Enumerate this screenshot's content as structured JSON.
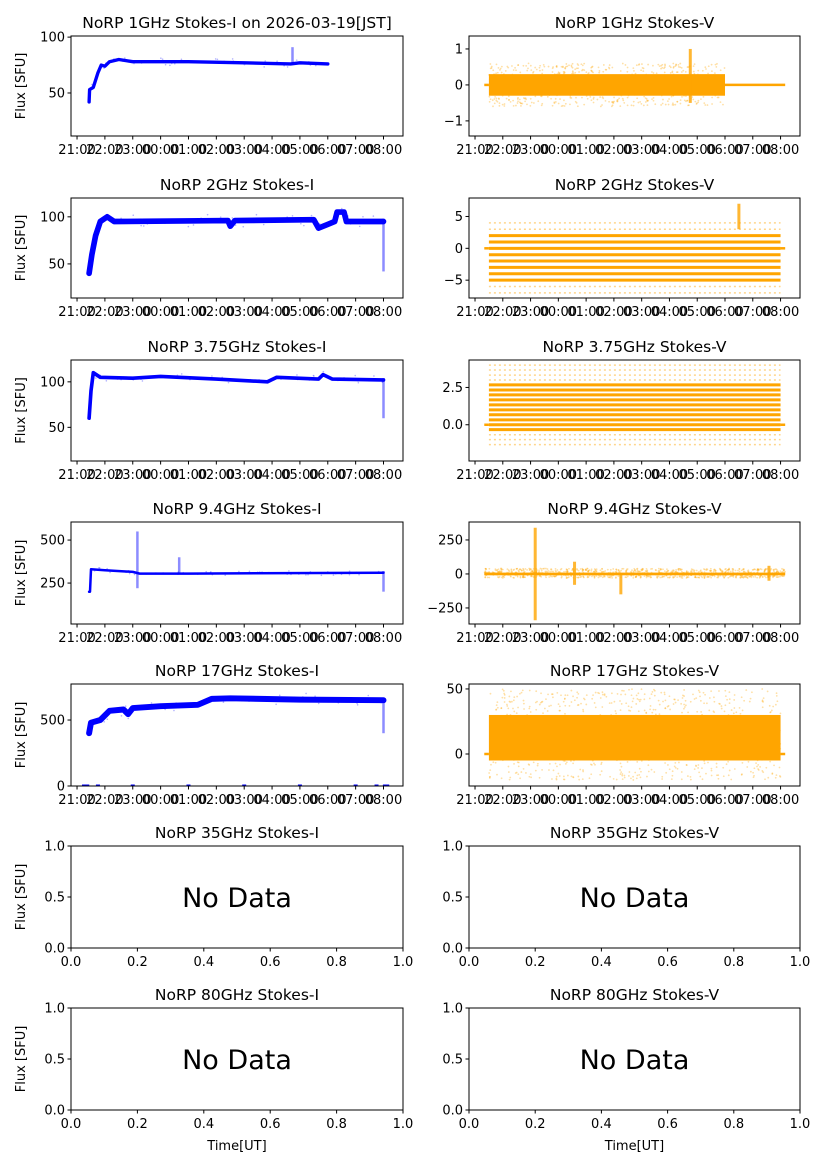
{
  "chart_data": [
    {
      "type": "line",
      "title": "NoRP 1GHz Stokes-I on 2026-03-19[JST]",
      "ylabel": "Flux [SFU]",
      "xlabel": "",
      "color": "#0000ff",
      "kind": "I",
      "xlim": [
        "20:47",
        "08:42"
      ],
      "ylim": [
        11.5,
        101
      ],
      "xticks": [
        "21:00",
        "22:00",
        "23:00",
        "00:00",
        "01:00",
        "02:00",
        "03:00",
        "04:00",
        "05:00",
        "06:00",
        "07:00",
        "08:00"
      ],
      "yticks": [
        {
          "value": 50,
          "label": "50"
        },
        {
          "value": 100,
          "label": "100"
        }
      ],
      "trend": [
        [
          "21:26",
          42
        ],
        [
          "21:27",
          53
        ],
        [
          "21:35",
          55
        ],
        [
          "21:45",
          68
        ],
        [
          "21:52",
          75
        ],
        [
          "22:00",
          74
        ],
        [
          "22:10",
          78
        ],
        [
          "22:30",
          80
        ],
        [
          "23:00",
          78
        ],
        [
          "01:00",
          78
        ],
        [
          "03:00",
          77
        ],
        [
          "04:40",
          76
        ],
        [
          "05:00",
          77
        ],
        [
          "06:00",
          76
        ]
      ],
      "noise": 3,
      "spikes": [
        [
          "04:44",
          76,
          91
        ]
      ]
    },
    {
      "type": "scatter",
      "title": "NoRP 1GHz Stokes-V",
      "ylabel": "",
      "xlabel": "",
      "color": "#ffa500",
      "kind": "V",
      "xlim": [
        "20:47",
        "08:42"
      ],
      "ylim": [
        -1.42,
        1.36
      ],
      "xticks": [
        "21:00",
        "22:00",
        "23:00",
        "00:00",
        "01:00",
        "02:00",
        "03:00",
        "04:00",
        "05:00",
        "06:00",
        "07:00",
        "08:00"
      ],
      "yticks": [
        {
          "value": -1,
          "label": "−1"
        },
        {
          "value": 0,
          "label": "0"
        },
        {
          "value": 1,
          "label": "1"
        }
      ],
      "range": [
        "21:30",
        "06:00"
      ],
      "band": [
        -0.3,
        0.3
      ],
      "scatter": [
        -0.6,
        0.6
      ],
      "zero_segments": [
        [
          "21:20",
          "21:30"
        ],
        [
          "06:00",
          "08:10"
        ]
      ],
      "spikes": [
        [
          "04:45",
          -0.5,
          1.0
        ]
      ]
    },
    {
      "type": "line",
      "title": "NoRP 2GHz Stokes-I",
      "ylabel": "Flux [SFU]",
      "xlabel": "",
      "color": "#0000ff",
      "kind": "I",
      "xlim": [
        "20:47",
        "08:42"
      ],
      "ylim": [
        13.8,
        120
      ],
      "xticks": [
        "21:00",
        "22:00",
        "23:00",
        "00:00",
        "01:00",
        "02:00",
        "03:00",
        "04:00",
        "05:00",
        "06:00",
        "07:00",
        "08:00"
      ],
      "yticks": [
        {
          "value": 50,
          "label": "50"
        },
        {
          "value": 100,
          "label": "100"
        }
      ],
      "trend": [
        [
          "21:26",
          40
        ],
        [
          "21:32",
          60
        ],
        [
          "21:40",
          80
        ],
        [
          "21:50",
          95
        ],
        [
          "22:05",
          100
        ],
        [
          "22:20",
          95
        ],
        [
          "02:25",
          96
        ],
        [
          "02:30",
          90
        ],
        [
          "02:40",
          96
        ],
        [
          "05:30",
          97
        ],
        [
          "05:40",
          88
        ],
        [
          "06:00",
          92
        ],
        [
          "06:15",
          95
        ],
        [
          "06:20",
          105
        ],
        [
          "06:35",
          105
        ],
        [
          "06:40",
          95
        ],
        [
          "08:00",
          95
        ]
      ],
      "noise": 6,
      "spikes": [
        [
          "08:00",
          42,
          98
        ]
      ]
    },
    {
      "type": "scatter",
      "title": "NoRP 2GHz Stokes-V",
      "ylabel": "",
      "xlabel": "",
      "color": "#ffa500",
      "kind": "V",
      "xlim": [
        "20:47",
        "08:42"
      ],
      "ylim": [
        -7.8,
        7.9
      ],
      "xticks": [
        "21:00",
        "22:00",
        "23:00",
        "00:00",
        "01:00",
        "02:00",
        "03:00",
        "04:00",
        "05:00",
        "06:00",
        "07:00",
        "08:00"
      ],
      "yticks": [
        {
          "value": -5,
          "label": "−5"
        },
        {
          "value": 0,
          "label": "0"
        },
        {
          "value": 5,
          "label": "5"
        }
      ],
      "range": [
        "21:30",
        "08:00"
      ],
      "levels_dense": [
        -5,
        -4,
        -3,
        -2,
        -1,
        0,
        1,
        2
      ],
      "levels_sparse": [
        3,
        -6,
        4,
        -7
      ],
      "zero_segments": [
        [
          "21:20",
          "21:30"
        ],
        [
          "08:00",
          "08:10"
        ]
      ],
      "spikes": [
        [
          "06:30",
          3,
          7
        ]
      ]
    },
    {
      "type": "line",
      "title": "NoRP 3.75GHz Stokes-I",
      "ylabel": "Flux [SFU]",
      "xlabel": "",
      "color": "#0000ff",
      "kind": "I",
      "xlim": [
        "20:47",
        "08:42"
      ],
      "ylim": [
        13,
        124
      ],
      "xticks": [
        "21:00",
        "22:00",
        "23:00",
        "00:00",
        "01:00",
        "02:00",
        "03:00",
        "04:00",
        "05:00",
        "06:00",
        "07:00",
        "08:00"
      ],
      "yticks": [
        {
          "value": 50,
          "label": "50"
        },
        {
          "value": 100,
          "label": "100"
        }
      ],
      "trend": [
        [
          "21:26",
          60
        ],
        [
          "21:30",
          90
        ],
        [
          "21:35",
          110
        ],
        [
          "21:50",
          105
        ],
        [
          "23:00",
          104
        ],
        [
          "00:00",
          106
        ],
        [
          "02:00",
          103
        ],
        [
          "03:50",
          100
        ],
        [
          "04:10",
          105
        ],
        [
          "05:40",
          103
        ],
        [
          "05:50",
          108
        ],
        [
          "06:10",
          103
        ],
        [
          "08:00",
          102
        ]
      ],
      "noise": 4,
      "spikes": [
        [
          "08:00",
          60,
          104
        ]
      ]
    },
    {
      "type": "scatter",
      "title": "NoRP 3.75GHz Stokes-V",
      "ylabel": "",
      "xlabel": "",
      "color": "#ffa500",
      "kind": "V",
      "xlim": [
        "20:47",
        "08:42"
      ],
      "ylim": [
        -2.43,
        4.34
      ],
      "xticks": [
        "21:00",
        "22:00",
        "23:00",
        "00:00",
        "01:00",
        "02:00",
        "03:00",
        "04:00",
        "05:00",
        "06:00",
        "07:00",
        "08:00"
      ],
      "yticks": [
        {
          "value": 0,
          "label": "0.0"
        },
        {
          "value": 2.5,
          "label": "2.5"
        }
      ],
      "range": [
        "21:30",
        "08:00"
      ],
      "levels_dense": [
        -0.33,
        0,
        0.33,
        0.67,
        1,
        1.33,
        1.67,
        2,
        2.33,
        2.67
      ],
      "levels_sparse": [
        -0.67,
        -1,
        -1.33,
        3,
        3.33,
        3.67,
        4
      ],
      "zero_segments": [
        [
          "21:20",
          "21:30"
        ],
        [
          "08:00",
          "08:10"
        ]
      ],
      "spikes": []
    },
    {
      "type": "line",
      "title": "NoRP 9.4GHz Stokes-I",
      "ylabel": "Flux [SFU]",
      "xlabel": "",
      "color": "#0000ff",
      "kind": "I",
      "xlim": [
        "20:47",
        "08:42"
      ],
      "ylim": [
        12,
        605
      ],
      "xticks": [
        "21:00",
        "22:00",
        "23:00",
        "00:00",
        "01:00",
        "02:00",
        "03:00",
        "04:00",
        "05:00",
        "06:00",
        "07:00",
        "08:00"
      ],
      "yticks": [
        {
          "value": 250,
          "label": "250"
        },
        {
          "value": 500,
          "label": "500"
        }
      ],
      "trend": [
        [
          "21:26",
          200
        ],
        [
          "21:28",
          200
        ],
        [
          "21:30",
          330
        ],
        [
          "22:00",
          325
        ],
        [
          "23:00",
          315
        ],
        [
          "23:15",
          305
        ],
        [
          "01:00",
          305
        ],
        [
          "08:00",
          310
        ]
      ],
      "noise": 12,
      "spikes": [
        [
          "23:10",
          220,
          550
        ],
        [
          "00:40",
          300,
          400
        ],
        [
          "08:00",
          200,
          320
        ]
      ]
    },
    {
      "type": "scatter",
      "title": "NoRP 9.4GHz Stokes-V",
      "ylabel": "",
      "xlabel": "",
      "color": "#ffa500",
      "kind": "V",
      "xlim": [
        "20:47",
        "08:42"
      ],
      "ylim": [
        -368,
        382
      ],
      "xticks": [
        "21:00",
        "22:00",
        "23:00",
        "00:00",
        "01:00",
        "02:00",
        "03:00",
        "04:00",
        "05:00",
        "06:00",
        "07:00",
        "08:00"
      ],
      "yticks": [
        {
          "value": -250,
          "label": "−250"
        },
        {
          "value": 0,
          "label": "0"
        },
        {
          "value": 250,
          "label": "250"
        }
      ],
      "range": [
        "21:20",
        "08:10"
      ],
      "band": [
        -10,
        10
      ],
      "scatter": [
        -30,
        40
      ],
      "zero_segments": [],
      "spikes": [
        [
          "23:10",
          -340,
          340
        ],
        [
          "00:35",
          -80,
          90
        ],
        [
          "07:35",
          -50,
          60
        ],
        [
          "02:15",
          -150,
          0
        ]
      ]
    },
    {
      "type": "line",
      "title": "NoRP 17GHz Stokes-I",
      "ylabel": "Flux [SFU]",
      "xlabel": "",
      "color": "#0000ff",
      "kind": "I",
      "xlim": [
        "20:47",
        "08:42"
      ],
      "ylim": [
        0,
        773
      ],
      "xticks": [
        "21:00",
        "22:00",
        "23:00",
        "00:00",
        "01:00",
        "02:00",
        "03:00",
        "04:00",
        "05:00",
        "06:00",
        "07:00",
        "08:00"
      ],
      "yticks": [
        {
          "value": 0,
          "label": "0"
        },
        {
          "value": 500,
          "label": "500"
        }
      ],
      "trend": [
        [
          "21:26",
          400
        ],
        [
          "21:30",
          480
        ],
        [
          "21:50",
          500
        ],
        [
          "22:10",
          570
        ],
        [
          "22:40",
          580
        ],
        [
          "22:50",
          545
        ],
        [
          "23:00",
          590
        ],
        [
          "00:00",
          605
        ],
        [
          "01:20",
          615
        ],
        [
          "01:50",
          660
        ],
        [
          "02:30",
          665
        ],
        [
          "05:00",
          655
        ],
        [
          "08:00",
          650
        ]
      ],
      "noise": 45,
      "spikes": [
        [
          "08:00",
          400,
          650
        ]
      ],
      "zero_marks": [
        "21:15",
        "21:22",
        "21:45",
        "23:00",
        "01:00",
        "03:00",
        "05:00",
        "07:00",
        "07:45",
        "08:03",
        "08:08"
      ]
    },
    {
      "type": "scatter",
      "title": "NoRP 17GHz Stokes-V",
      "ylabel": "",
      "xlabel": "",
      "color": "#ffa500",
      "kind": "V",
      "xlim": [
        "20:47",
        "08:42"
      ],
      "ylim": [
        -24.6,
        53.8
      ],
      "xticks": [
        "21:00",
        "22:00",
        "23:00",
        "00:00",
        "01:00",
        "02:00",
        "03:00",
        "04:00",
        "05:00",
        "06:00",
        "07:00",
        "08:00"
      ],
      "yticks": [
        {
          "value": 0,
          "label": "0"
        },
        {
          "value": 50,
          "label": "50"
        }
      ],
      "range": [
        "21:30",
        "08:00"
      ],
      "band": [
        -5,
        30
      ],
      "scatter": [
        -20,
        50
      ],
      "zero_segments": [
        [
          "21:20",
          "21:30"
        ],
        [
          "08:00",
          "08:10"
        ]
      ],
      "spikes": []
    },
    {
      "type": "line",
      "title": "NoRP 35GHz Stokes-I",
      "ylabel": "Flux [SFU]",
      "xlabel": "",
      "kind": "empty",
      "message": "No Data",
      "xlim": [
        0,
        1
      ],
      "ylim": [
        0,
        1
      ],
      "xticks": [
        {
          "value": 0,
          "label": "0.0"
        },
        {
          "value": 0.2,
          "label": "0.2"
        },
        {
          "value": 0.4,
          "label": "0.4"
        },
        {
          "value": 0.6,
          "label": "0.6"
        },
        {
          "value": 0.8,
          "label": "0.8"
        },
        {
          "value": 1,
          "label": "1.0"
        }
      ],
      "yticks": [
        {
          "value": 0,
          "label": "0.0"
        },
        {
          "value": 0.5,
          "label": "0.5"
        },
        {
          "value": 1,
          "label": "1.0"
        }
      ]
    },
    {
      "type": "line",
      "title": "NoRP 35GHz Stokes-V",
      "ylabel": "",
      "xlabel": "",
      "kind": "empty",
      "message": "No Data",
      "xlim": [
        0,
        1
      ],
      "ylim": [
        0,
        1
      ],
      "xticks": [
        {
          "value": 0,
          "label": "0.0"
        },
        {
          "value": 0.2,
          "label": "0.2"
        },
        {
          "value": 0.4,
          "label": "0.4"
        },
        {
          "value": 0.6,
          "label": "0.6"
        },
        {
          "value": 0.8,
          "label": "0.8"
        },
        {
          "value": 1,
          "label": "1.0"
        }
      ],
      "yticks": [
        {
          "value": 0,
          "label": "0.0"
        },
        {
          "value": 0.5,
          "label": "0.5"
        },
        {
          "value": 1,
          "label": "1.0"
        }
      ]
    },
    {
      "type": "line",
      "title": "NoRP 80GHz Stokes-I",
      "ylabel": "Flux [SFU]",
      "xlabel": "Time[UT]",
      "kind": "empty",
      "message": "No Data",
      "xlim": [
        0,
        1
      ],
      "ylim": [
        0,
        1
      ],
      "xticks": [
        {
          "value": 0,
          "label": "0.0"
        },
        {
          "value": 0.2,
          "label": "0.2"
        },
        {
          "value": 0.4,
          "label": "0.4"
        },
        {
          "value": 0.6,
          "label": "0.6"
        },
        {
          "value": 0.8,
          "label": "0.8"
        },
        {
          "value": 1,
          "label": "1.0"
        }
      ],
      "yticks": [
        {
          "value": 0,
          "label": "0.0"
        },
        {
          "value": 0.5,
          "label": "0.5"
        },
        {
          "value": 1,
          "label": "1.0"
        }
      ]
    },
    {
      "type": "line",
      "title": "NoRP 80GHz Stokes-V",
      "ylabel": "",
      "xlabel": "Time[UT]",
      "kind": "empty",
      "message": "No Data",
      "xlim": [
        0,
        1
      ],
      "ylim": [
        0,
        1
      ],
      "xticks": [
        {
          "value": 0,
          "label": "0.0"
        },
        {
          "value": 0.2,
          "label": "0.2"
        },
        {
          "value": 0.4,
          "label": "0.4"
        },
        {
          "value": 0.6,
          "label": "0.6"
        },
        {
          "value": 0.8,
          "label": "0.8"
        },
        {
          "value": 1,
          "label": "1.0"
        }
      ],
      "yticks": [
        {
          "value": 0,
          "label": "0.0"
        },
        {
          "value": 0.5,
          "label": "0.5"
        },
        {
          "value": 1,
          "label": "1.0"
        }
      ]
    }
  ]
}
